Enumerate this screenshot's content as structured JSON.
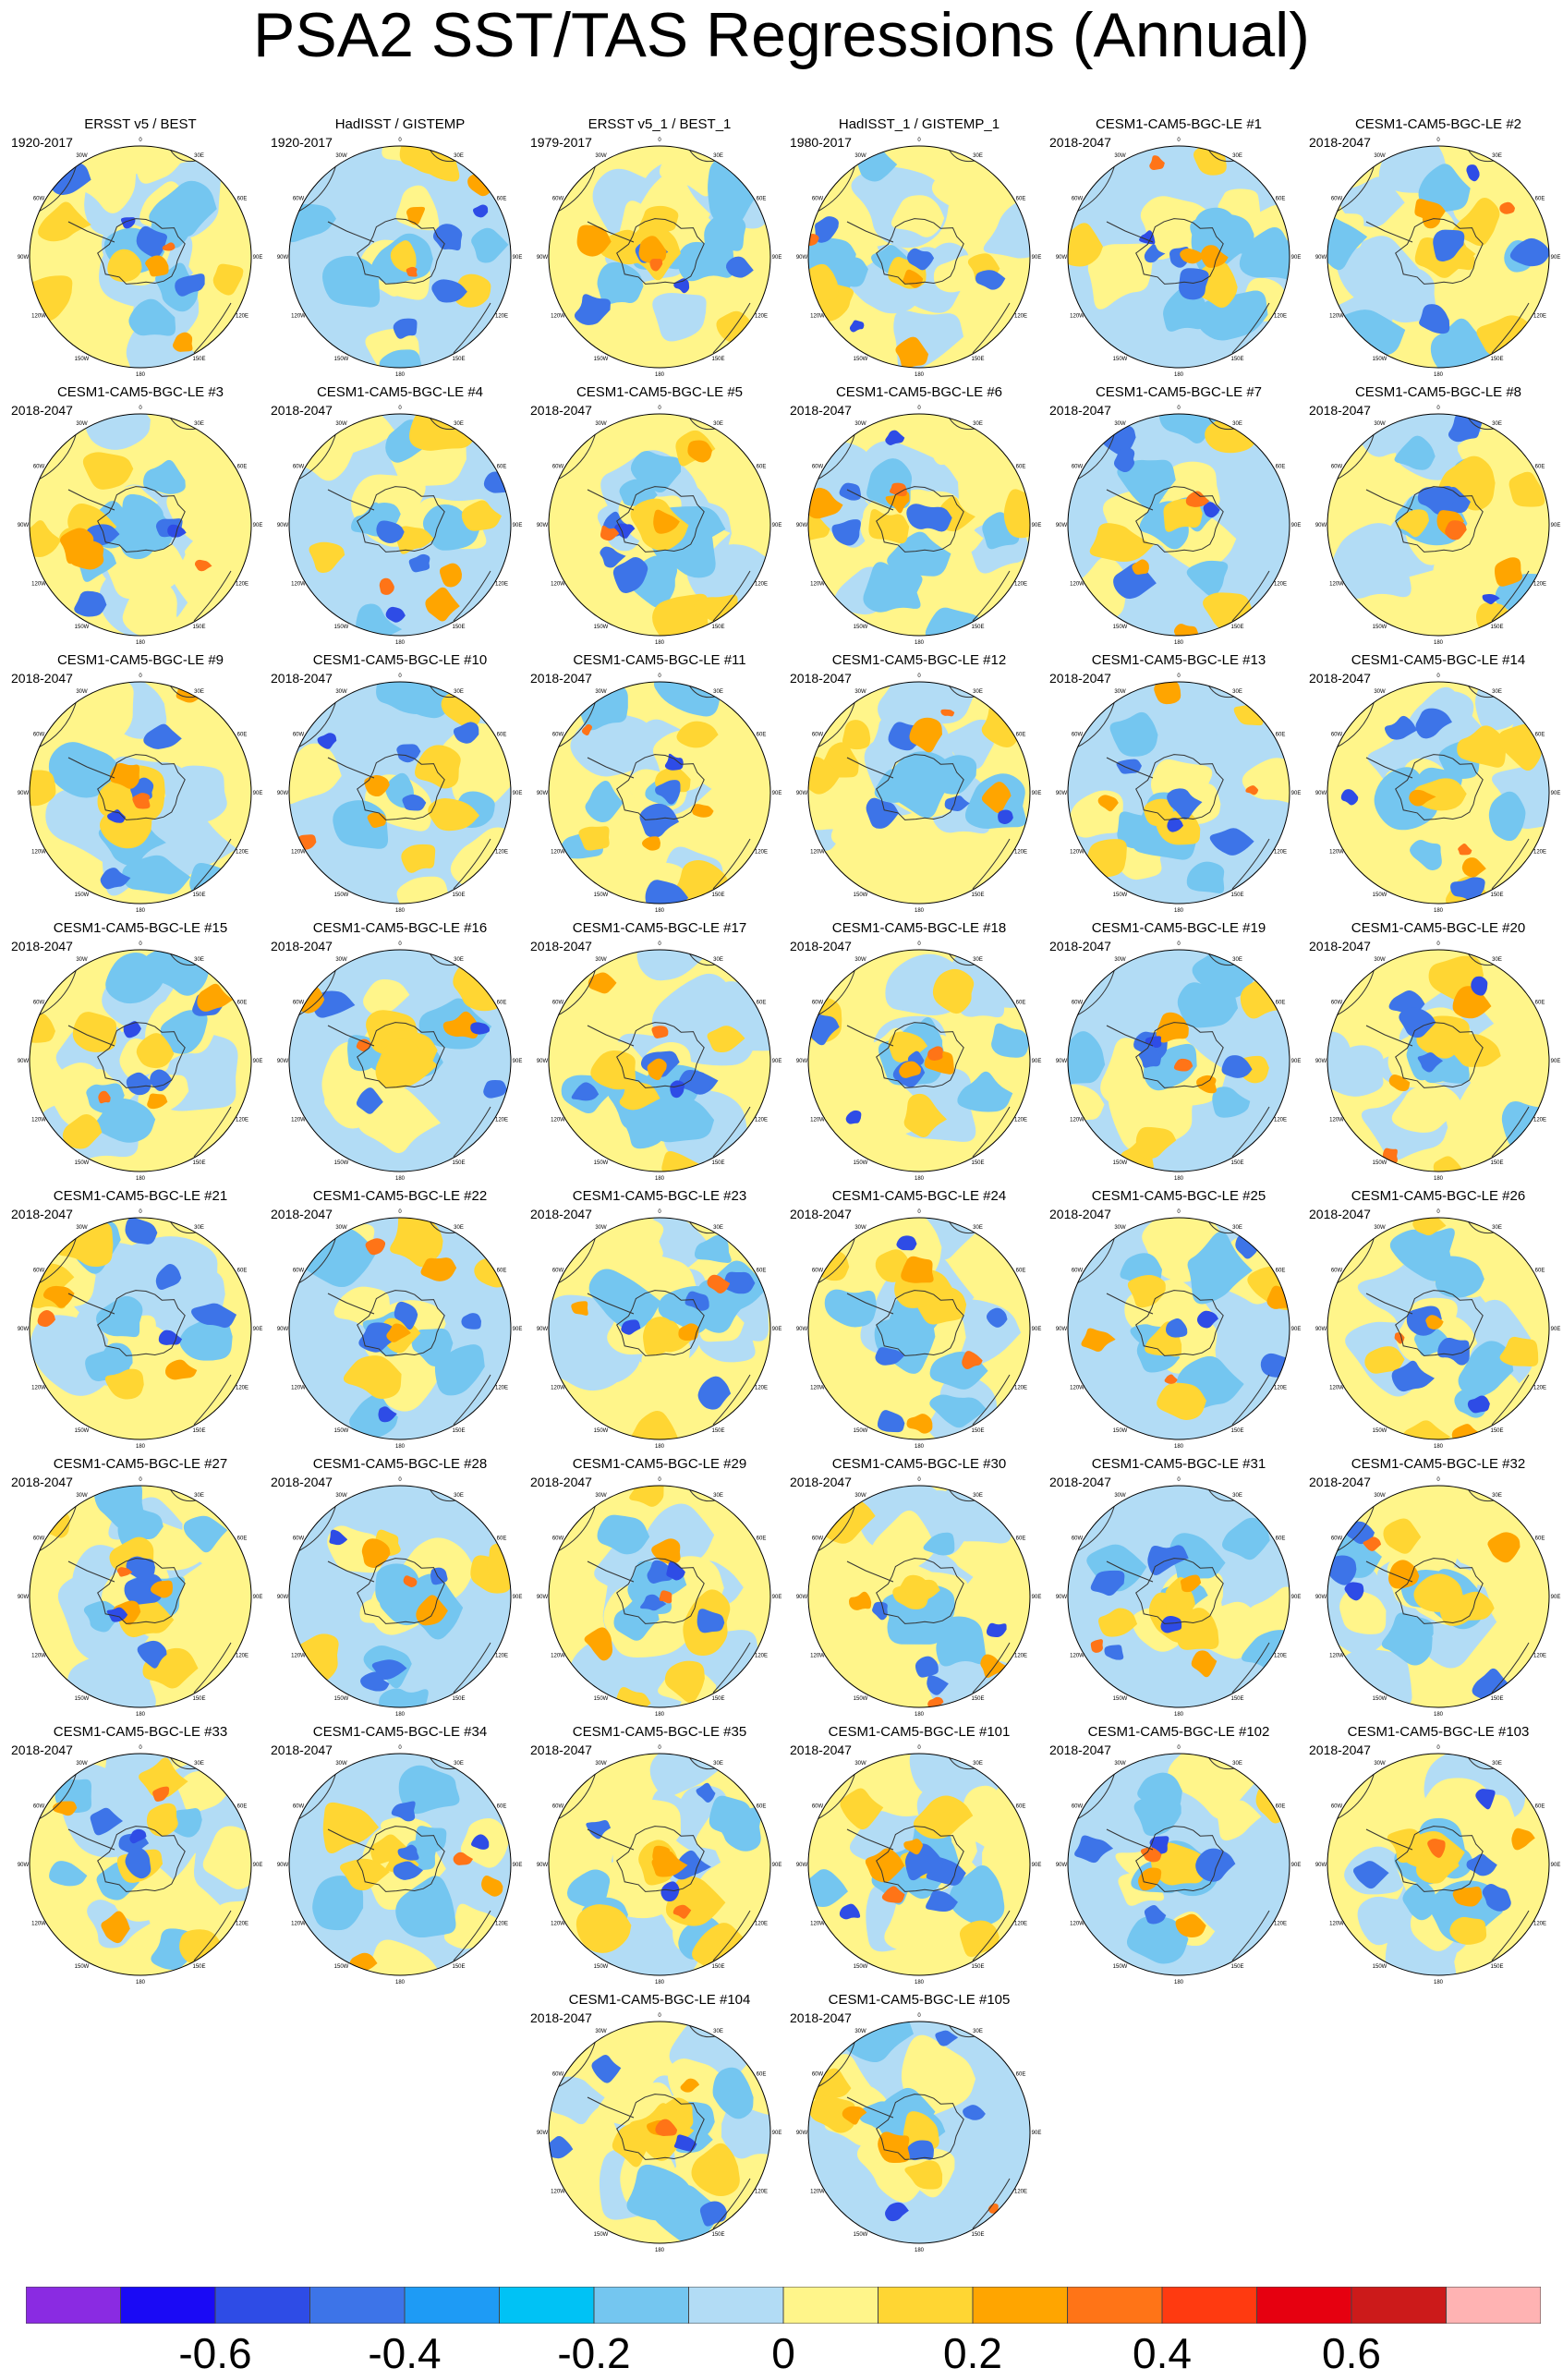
{
  "title": "PSA2 SST/TAS Regressions (Annual)",
  "lon_labels": [
    "0",
    "30E",
    "60E",
    "90E",
    "120E",
    "150E",
    "180",
    "150W",
    "120W",
    "90W",
    "60W",
    "30W"
  ],
  "panels": [
    {
      "title": "ERSST v5 / BEST",
      "period": "1920-2017"
    },
    {
      "title": "HadISST / GISTEMP",
      "period": "1920-2017"
    },
    {
      "title": "ERSST v5_1 / BEST_1",
      "period": "1979-2017"
    },
    {
      "title": "HadISST_1 / GISTEMP_1",
      "period": "1980-2017"
    },
    {
      "title": "CESM1-CAM5-BGC-LE #1",
      "period": "2018-2047"
    },
    {
      "title": "CESM1-CAM5-BGC-LE #2",
      "period": "2018-2047"
    },
    {
      "title": "CESM1-CAM5-BGC-LE #3",
      "period": "2018-2047"
    },
    {
      "title": "CESM1-CAM5-BGC-LE #4",
      "period": "2018-2047"
    },
    {
      "title": "CESM1-CAM5-BGC-LE #5",
      "period": "2018-2047"
    },
    {
      "title": "CESM1-CAM5-BGC-LE #6",
      "period": "2018-2047"
    },
    {
      "title": "CESM1-CAM5-BGC-LE #7",
      "period": "2018-2047"
    },
    {
      "title": "CESM1-CAM5-BGC-LE #8",
      "period": "2018-2047"
    },
    {
      "title": "CESM1-CAM5-BGC-LE #9",
      "period": "2018-2047"
    },
    {
      "title": "CESM1-CAM5-BGC-LE #10",
      "period": "2018-2047"
    },
    {
      "title": "CESM1-CAM5-BGC-LE #11",
      "period": "2018-2047"
    },
    {
      "title": "CESM1-CAM5-BGC-LE #12",
      "period": "2018-2047"
    },
    {
      "title": "CESM1-CAM5-BGC-LE #13",
      "period": "2018-2047"
    },
    {
      "title": "CESM1-CAM5-BGC-LE #14",
      "period": "2018-2047"
    },
    {
      "title": "CESM1-CAM5-BGC-LE #15",
      "period": "2018-2047"
    },
    {
      "title": "CESM1-CAM5-BGC-LE #16",
      "period": "2018-2047"
    },
    {
      "title": "CESM1-CAM5-BGC-LE #17",
      "period": "2018-2047"
    },
    {
      "title": "CESM1-CAM5-BGC-LE #18",
      "period": "2018-2047"
    },
    {
      "title": "CESM1-CAM5-BGC-LE #19",
      "period": "2018-2047"
    },
    {
      "title": "CESM1-CAM5-BGC-LE #20",
      "period": "2018-2047"
    },
    {
      "title": "CESM1-CAM5-BGC-LE #21",
      "period": "2018-2047"
    },
    {
      "title": "CESM1-CAM5-BGC-LE #22",
      "period": "2018-2047"
    },
    {
      "title": "CESM1-CAM5-BGC-LE #23",
      "period": "2018-2047"
    },
    {
      "title": "CESM1-CAM5-BGC-LE #24",
      "period": "2018-2047"
    },
    {
      "title": "CESM1-CAM5-BGC-LE #25",
      "period": "2018-2047"
    },
    {
      "title": "CESM1-CAM5-BGC-LE #26",
      "period": "2018-2047"
    },
    {
      "title": "CESM1-CAM5-BGC-LE #27",
      "period": "2018-2047"
    },
    {
      "title": "CESM1-CAM5-BGC-LE #28",
      "period": "2018-2047"
    },
    {
      "title": "CESM1-CAM5-BGC-LE #29",
      "period": "2018-2047"
    },
    {
      "title": "CESM1-CAM5-BGC-LE #30",
      "period": "2018-2047"
    },
    {
      "title": "CESM1-CAM5-BGC-LE #31",
      "period": "2018-2047"
    },
    {
      "title": "CESM1-CAM5-BGC-LE #32",
      "period": "2018-2047"
    },
    {
      "title": "CESM1-CAM5-BGC-LE #33",
      "period": "2018-2047"
    },
    {
      "title": "CESM1-CAM5-BGC-LE #34",
      "period": "2018-2047"
    },
    {
      "title": "CESM1-CAM5-BGC-LE #35",
      "period": "2018-2047"
    },
    {
      "title": "CESM1-CAM5-BGC-LE #101",
      "period": "2018-2047"
    },
    {
      "title": "CESM1-CAM5-BGC-LE #102",
      "period": "2018-2047"
    },
    {
      "title": "CESM1-CAM5-BGC-LE #103",
      "period": "2018-2047"
    },
    {
      "title": "CESM1-CAM5-BGC-LE #104",
      "period": "2018-2047"
    },
    {
      "title": "CESM1-CAM5-BGC-LE #105",
      "period": "2018-2047"
    }
  ],
  "colorbar": {
    "colors": [
      "#8a2be2",
      "#1a0af5",
      "#2e4ce6",
      "#3d74e8",
      "#1e9bf5",
      "#00c2f5",
      "#74c6f0",
      "#b2dcf5",
      "#fff58a",
      "#ffd633",
      "#ffa500",
      "#ff7417",
      "#ff3a10",
      "#e60010",
      "#cc1a1a",
      "#ffb3b3"
    ],
    "labels": [
      "-0.6",
      "-0.4",
      "-0.2",
      "0",
      "0.2",
      "0.4",
      "0.6"
    ]
  },
  "palette": {
    "strong_neg": "#2e4ce6",
    "mid_neg": "#3d74e8",
    "weak_neg": "#74c6f0",
    "very_weak_neg": "#b2dcf5",
    "very_weak_pos": "#fff58a",
    "weak_pos": "#ffd633",
    "mid_pos": "#ffa500",
    "strong_pos": "#ff7417"
  }
}
